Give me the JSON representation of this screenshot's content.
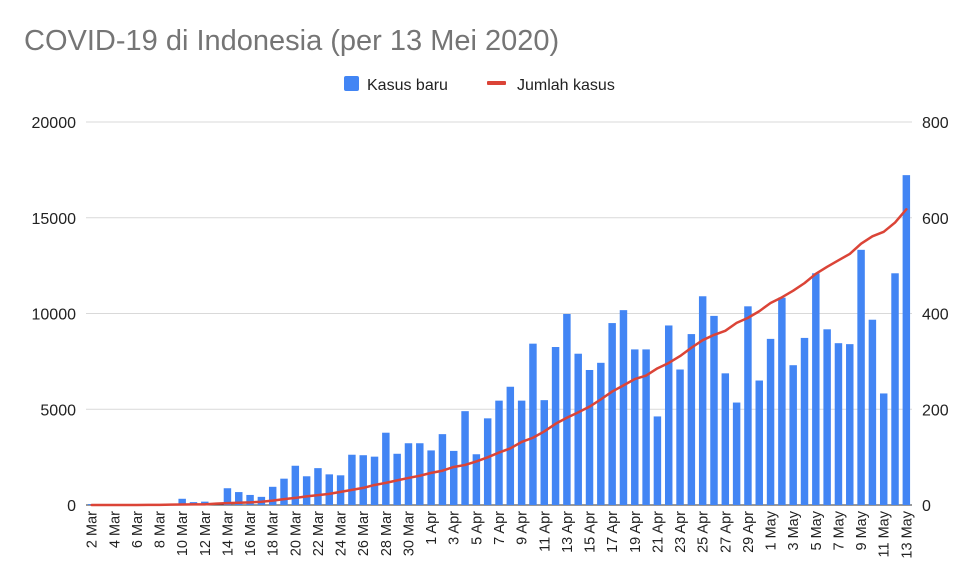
{
  "chart_data": {
    "type": "bar",
    "title": "COVID-19 di Indonesia (per 13 Mei 2020)",
    "legend": {
      "position": "top",
      "entries": [
        {
          "label": "Kasus baru",
          "color": "#4285f4",
          "marker": "square"
        },
        {
          "label": "Jumlah kasus",
          "color": "#db4437",
          "marker": "line"
        }
      ]
    },
    "grid": true,
    "y_left": {
      "ticks": [
        "20000",
        "15000",
        "10000",
        "5000",
        "0"
      ],
      "range": [
        0,
        20000
      ]
    },
    "y_right": {
      "ticks": [
        "800",
        "600",
        "400",
        "200",
        "0"
      ],
      "range": [
        0,
        800
      ]
    },
    "x_tick_labels": [
      "2 Mar",
      "4 Mar",
      "6 Mar",
      "8 Mar",
      "10 Mar",
      "12 Mar",
      "14 Mar",
      "16 Mar",
      "18 Mar",
      "20 Mar",
      "22 Mar",
      "24 Mar",
      "26 Mar",
      "28 Mar",
      "30 Mar",
      "1 Apr",
      "3 Apr",
      "5 Apr",
      "7 Apr",
      "9 Apr",
      "11 Apr",
      "13 Apr",
      "15 Apr",
      "17 Apr",
      "19 Apr",
      "21 Apr",
      "23 Apr",
      "25 Apr",
      "27 Apr",
      "29 Apr",
      "1 May",
      "3 May",
      "5 May",
      "7 May",
      "9 May",
      "11 May",
      "13 May"
    ],
    "categories": [
      "2 Mar",
      "3 Mar",
      "4 Mar",
      "5 Mar",
      "6 Mar",
      "7 Mar",
      "8 Mar",
      "9 Mar",
      "10 Mar",
      "11 Mar",
      "12 Mar",
      "13 Mar",
      "14 Mar",
      "15 Mar",
      "16 Mar",
      "17 Mar",
      "18 Mar",
      "19 Mar",
      "20 Mar",
      "21 Mar",
      "22 Mar",
      "23 Mar",
      "24 Mar",
      "25 Mar",
      "26 Mar",
      "27 Mar",
      "28 Mar",
      "29 Mar",
      "30 Mar",
      "31 Mar",
      "1 Apr",
      "2 Apr",
      "3 Apr",
      "4 Apr",
      "5 Apr",
      "6 Apr",
      "7 Apr",
      "8 Apr",
      "9 Apr",
      "10 Apr",
      "11 Apr",
      "12 Apr",
      "13 Apr",
      "14 Apr",
      "15 Apr",
      "16 Apr",
      "17 Apr",
      "18 Apr",
      "19 Apr",
      "20 Apr",
      "21 Apr",
      "22 Apr",
      "23 Apr",
      "24 Apr",
      "25 Apr",
      "26 Apr",
      "27 Apr",
      "28 Apr",
      "29 Apr",
      "30 Apr",
      "1 May",
      "2 May",
      "3 May",
      "4 May",
      "5 May",
      "6 May",
      "7 May",
      "8 May",
      "9 May",
      "10 May",
      "11 May",
      "12 May",
      "13 May"
    ],
    "series": [
      {
        "name": "Kasus baru",
        "type": "bar",
        "axis": "right",
        "values": [
          2,
          0,
          0,
          0,
          0,
          0,
          0,
          0,
          13,
          6,
          7,
          0,
          35,
          27,
          21,
          17,
          38,
          55,
          82,
          60,
          77,
          64,
          62,
          105,
          104,
          101,
          151,
          107,
          129,
          129,
          114,
          148,
          113,
          196,
          106,
          181,
          218,
          247,
          218,
          337,
          219,
          330,
          399,
          316,
          282,
          297,
          380,
          407,
          325,
          325,
          185,
          375,
          283,
          357,
          436,
          395,
          275,
          214,
          415,
          260,
          347,
          433,
          292,
          349,
          484,
          367,
          338,
          336,
          533,
          387,
          233,
          484,
          689
        ]
      },
      {
        "name": "Jumlah kasus",
        "type": "line",
        "axis": "left",
        "values": [
          2,
          2,
          2,
          2,
          2,
          4,
          6,
          19,
          27,
          34,
          34,
          69,
          96,
          117,
          134,
          172,
          227,
          309,
          369,
          450,
          514,
          579,
          686,
          790,
          893,
          1046,
          1155,
          1285,
          1414,
          1528,
          1677,
          1790,
          1986,
          2092,
          2273,
          2491,
          2738,
          2956,
          3293,
          3512,
          3842,
          4241,
          4557,
          4839,
          5136,
          5516,
          5923,
          6248,
          6575,
          6760,
          7135,
          7418,
          7775,
          8211,
          8607,
          8882,
          9096,
          9511,
          9771,
          10118,
          10551,
          10843,
          11192,
          11587,
          12071,
          12438,
          12776,
          13112,
          13645,
          14032,
          14265,
          14749,
          15438
        ]
      }
    ]
  }
}
